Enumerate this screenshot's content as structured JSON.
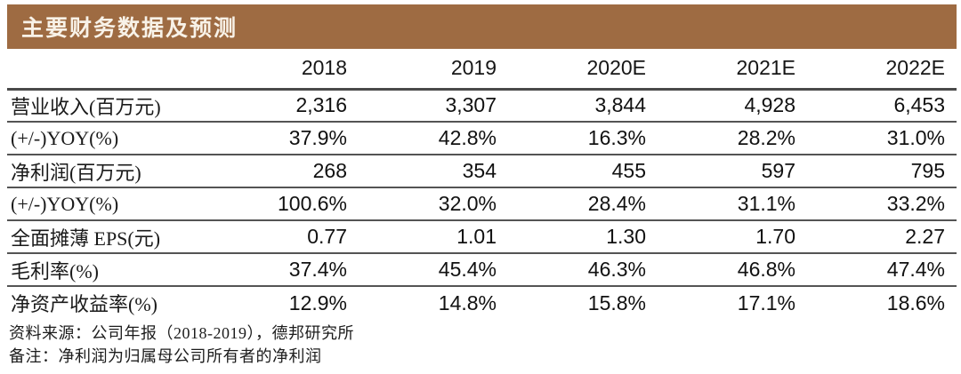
{
  "title": "主要财务数据及预测",
  "table": {
    "columns": [
      "2018",
      "2019",
      "2020E",
      "2021E",
      "2022E"
    ],
    "rows": [
      {
        "label": "营业收入(百万元)",
        "values": [
          "2,316",
          "3,307",
          "3,844",
          "4,928",
          "6,453"
        ]
      },
      {
        "label": "(+/-)YOY(%)",
        "values": [
          "37.9%",
          "42.8%",
          "16.3%",
          "28.2%",
          "31.0%"
        ]
      },
      {
        "label": "净利润(百万元)",
        "values": [
          "268",
          "354",
          "455",
          "597",
          "795"
        ]
      },
      {
        "label": "(+/-)YOY(%)",
        "values": [
          "100.6%",
          "32.0%",
          "28.4%",
          "31.1%",
          "33.2%"
        ]
      },
      {
        "label": "全面摊薄 EPS(元)",
        "values": [
          "0.77",
          "1.01",
          "1.30",
          "1.70",
          "2.27"
        ]
      },
      {
        "label": "毛利率(%)",
        "values": [
          "37.4%",
          "45.4%",
          "46.3%",
          "46.8%",
          "47.4%"
        ]
      },
      {
        "label": "净资产收益率(%)",
        "values": [
          "12.9%",
          "14.8%",
          "15.8%",
          "17.1%",
          "18.6%"
        ]
      }
    ]
  },
  "footnotes": {
    "source": "资料来源：公司年报（2018-2019），德邦研究所",
    "note": "备注：净利润为归属母公司所有者的净利润"
  },
  "colors": {
    "title_bar_bg": "#9e6b42",
    "title_text": "#f8f2e8",
    "rule_line": "#4a4a4a",
    "body_text": "#111111"
  }
}
